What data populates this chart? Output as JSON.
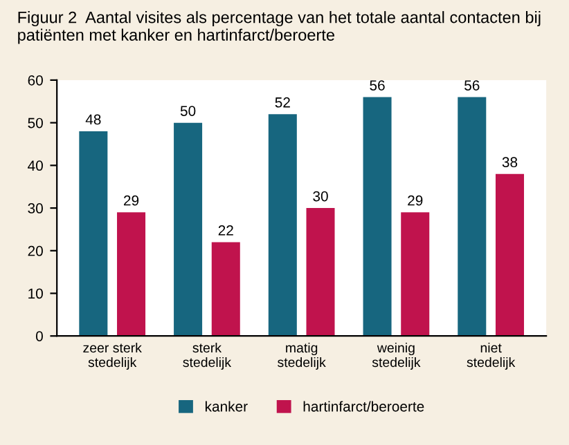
{
  "chart_data": {
    "type": "bar",
    "title": "Figuur 2  Aantal visites als percentage van het totale aantal contacten bij patiënten met kanker en hartinfarct/beroerte",
    "categories": [
      "zeer sterk\nstedelijk",
      "sterk\nstedelijk",
      "matig\nstedelijk",
      "weinig\nstedelijk",
      "niet\nstedelijk"
    ],
    "series": [
      {
        "name": "kanker",
        "color": "#17667f",
        "values": [
          48,
          50,
          52,
          56,
          56
        ]
      },
      {
        "name": "hartinfarct/beroerte",
        "color": "#c0134d",
        "values": [
          29,
          22,
          30,
          29,
          38
        ]
      }
    ],
    "ylim": [
      0,
      60
    ],
    "yticks": [
      0,
      10,
      20,
      30,
      40,
      50,
      60
    ],
    "grid": false,
    "legend": "bottom",
    "data_labels": true
  }
}
